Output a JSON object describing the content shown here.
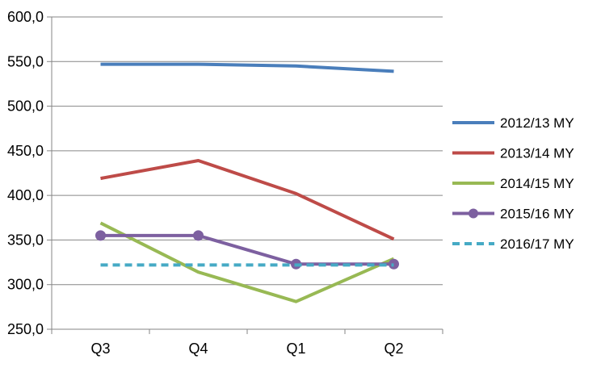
{
  "chart_data": {
    "type": "line",
    "categories": [
      "Q3",
      "Q4",
      "Q1",
      "Q2"
    ],
    "ylim": [
      250,
      600
    ],
    "y_ticks": [
      "250,0",
      "300,0",
      "350,0",
      "400,0",
      "450,0",
      "500,0",
      "550,0",
      "600,0"
    ],
    "grid": "horizontal",
    "legend_position": "right",
    "series": [
      {
        "name": "2012/13 MY",
        "values": [
          547,
          547,
          545,
          539
        ],
        "color": "#4a7ebb",
        "style": "solid",
        "marker": "none"
      },
      {
        "name": "2013/14 MY",
        "values": [
          419,
          439,
          402,
          351
        ],
        "color": "#be4b48",
        "style": "solid",
        "marker": "none"
      },
      {
        "name": "2014/15 MY",
        "values": [
          369,
          314,
          281,
          329
        ],
        "color": "#98b954",
        "style": "solid",
        "marker": "none"
      },
      {
        "name": "2015/16 MY",
        "values": [
          355,
          355,
          323,
          323
        ],
        "color": "#7d60a0",
        "style": "solid",
        "marker": "circle"
      },
      {
        "name": "2016/17 MY",
        "values": [
          322,
          322,
          322,
          322
        ],
        "color": "#46aac5",
        "style": "dashed",
        "marker": "none"
      }
    ]
  }
}
